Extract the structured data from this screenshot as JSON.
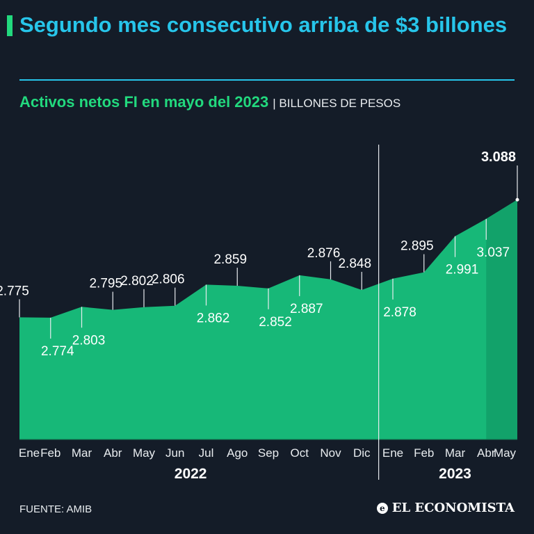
{
  "title": "Segundo mes consecutivo arriba de $3 billones",
  "subtitle": "Activos netos FI en mayo del 2023",
  "unit_label": "| BILLONES DE PESOS",
  "source": "FUENTE: AMIB",
  "brand": "EL ECONOMISTA",
  "colors": {
    "background": "#141c28",
    "title": "#27c5ea",
    "subtitle": "#22d97e",
    "area": "#17b878",
    "area_highlight": "#12a26a",
    "text": "#e8ecef"
  },
  "chart_data": {
    "type": "area",
    "title": "Activos netos FI en mayo del 2023",
    "ylabel": "Billones de pesos",
    "ylim": [
      2.45,
      3.12
    ],
    "x": [
      "Ene",
      "Feb",
      "Mar",
      "Abr",
      "May",
      "Jun",
      "Jul",
      "Ago",
      "Sep",
      "Oct",
      "Nov",
      "Dic",
      "Ene",
      "Feb",
      "Mar",
      "Abr",
      "May"
    ],
    "values": [
      2.775,
      2.774,
      2.803,
      2.795,
      2.802,
      2.806,
      2.862,
      2.859,
      2.852,
      2.887,
      2.876,
      2.848,
      2.878,
      2.895,
      2.991,
      3.037,
      3.088
    ],
    "value_labels": [
      "2.775",
      "2.774",
      "2.803",
      "2.795",
      "2.802",
      "2.806",
      "2.862",
      "2.859",
      "2.852",
      "2.887",
      "2.876",
      "2.848",
      "2.878",
      "2.895",
      "2.991",
      "3.037",
      "3.088"
    ],
    "label_pos": [
      "above",
      "below",
      "below",
      "above",
      "above",
      "above",
      "below",
      "above",
      "below",
      "below",
      "above",
      "above",
      "below",
      "above",
      "below",
      "below",
      "above"
    ],
    "years": [
      {
        "label": "2022",
        "start": 0,
        "end": 11
      },
      {
        "label": "2023",
        "start": 12,
        "end": 16
      }
    ],
    "highlight_from": 15
  }
}
